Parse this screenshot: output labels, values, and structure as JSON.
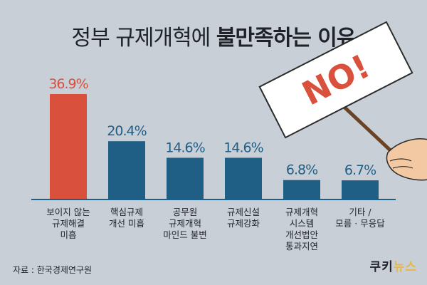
{
  "title": {
    "normal": "정부 규제개혁에 ",
    "bold": "불만족하는 이유"
  },
  "sign_text": "NO!",
  "source": "자료 : 한국경제연구원",
  "logo": {
    "part1": "쿠키",
    "part2": "뉴스"
  },
  "colors": {
    "background": "#c9cfd7",
    "highlight_bar": "#d9503d",
    "bar": "#1f5f86",
    "axis": "#1f5f86"
  },
  "chart_data": {
    "type": "bar",
    "title": "정부 규제개혁에 불만족하는 이유",
    "categories": [
      [
        "보이지 않는",
        "규제해결",
        "미흡"
      ],
      [
        "핵심규제",
        "개선 미흡"
      ],
      [
        "공무원",
        "규제개혁",
        "마인드 불변"
      ],
      [
        "규제신설",
        "규제강화"
      ],
      [
        "규제개혁",
        "시스템",
        "개선법안",
        "통과지연"
      ],
      [
        "기타 /",
        "모름 · 무응답"
      ]
    ],
    "values": [
      36.9,
      20.4,
      14.6,
      14.6,
      6.8,
      6.7
    ],
    "value_labels": [
      "36.9%",
      "20.4%",
      "14.6%",
      "14.6%",
      "6.8%",
      "6.7%"
    ],
    "highlight_index": 0,
    "ylim": [
      0,
      40
    ],
    "grid": false,
    "xlabel": "",
    "ylabel": ""
  }
}
